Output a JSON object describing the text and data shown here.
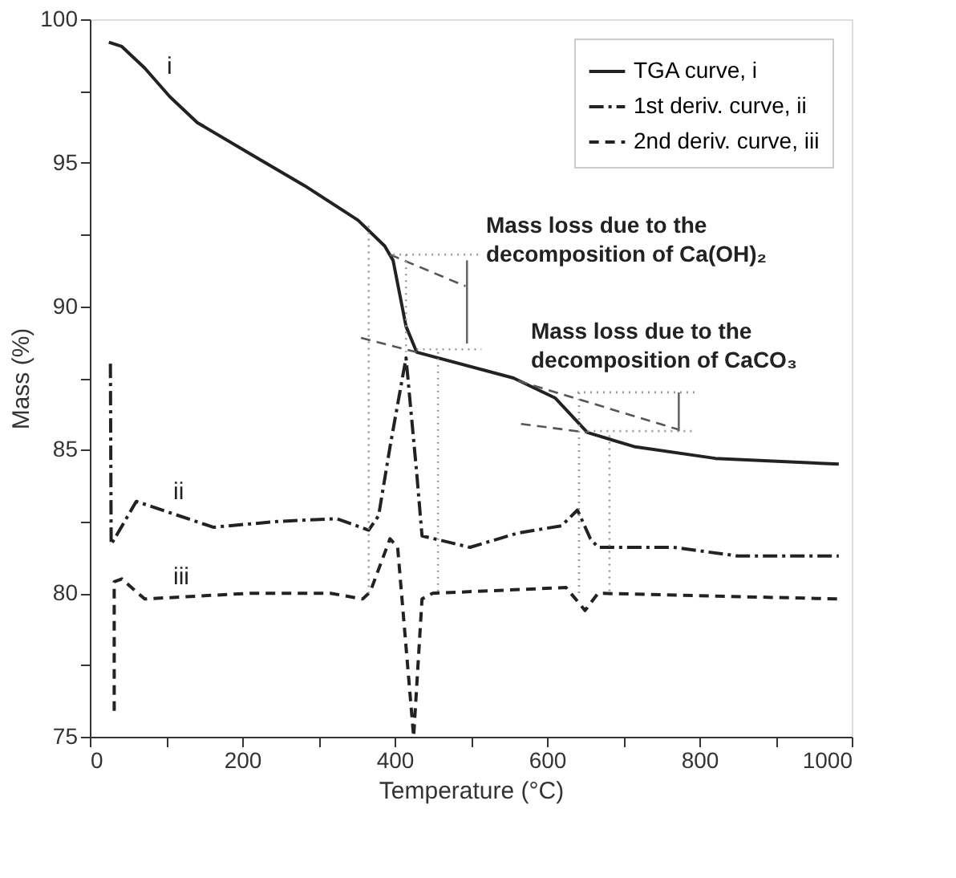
{
  "chart_data": {
    "type": "line",
    "xlabel": "Temperature (°C)",
    "ylabel": "Mass (%)",
    "xlim": [
      0,
      1000
    ],
    "ylim": [
      75,
      100
    ],
    "xticks": [
      0,
      {
        "value": 100,
        "label": null
      },
      200,
      {
        "value": 300,
        "label": null
      },
      400,
      {
        "value": 500,
        "label": null
      },
      600,
      {
        "value": 700,
        "label": null
      },
      800,
      {
        "value": 900,
        "label": null
      },
      1000
    ],
    "yticks": [
      75,
      {
        "value": 77.5,
        "label": null
      },
      80,
      {
        "value": 82.5,
        "label": null
      },
      85,
      {
        "value": 87.5,
        "label": null
      },
      90,
      {
        "value": 92.5,
        "label": null
      },
      95,
      {
        "value": 97.5,
        "label": null
      },
      100
    ],
    "grid": false,
    "legend": "top right",
    "marker": "none",
    "series": [
      {
        "name": "TGA curve, i",
        "color": "#222222",
        "line_style": "solid",
        "x": [
          25,
          42,
          72,
          105,
          141,
          211,
          282,
          352,
          387,
          398,
          415,
          429,
          556,
          611,
          653,
          716,
          821,
          983
        ],
        "values": [
          99.2,
          99.05,
          98.3,
          97.3,
          96.4,
          95.3,
          94.2,
          93.0,
          92.1,
          91.6,
          89.3,
          88.4,
          87.5,
          86.8,
          85.6,
          85.1,
          84.7,
          84.5
        ]
      },
      {
        "name": "1st deriv. curve, ii",
        "color": "#222222",
        "line_style": "dashdot",
        "x": [
          27,
          28,
          61,
          162,
          246,
          324,
          366,
          379,
          394,
          415,
          429,
          436,
          499,
          562,
          619,
          640,
          657,
          667,
          766,
          850,
          983
        ],
        "values": [
          88.0,
          81.7,
          83.2,
          82.3,
          82.5,
          82.6,
          82.2,
          82.7,
          85.1,
          88.2,
          84.2,
          82.0,
          81.6,
          82.1,
          82.35,
          82.9,
          81.9,
          81.6,
          81.6,
          81.3,
          81.3
        ]
      },
      {
        "name": "2nd deriv. curve, iii",
        "color": "#222222",
        "line_style": "dashed",
        "x": [
          32,
          32,
          42,
          72,
          211,
          316,
          358,
          368,
          394,
          404,
          425,
          436,
          450,
          625,
          650,
          667,
          983
        ],
        "values": [
          75.9,
          80.4,
          80.5,
          79.8,
          80.0,
          80.0,
          79.8,
          80.05,
          81.9,
          81.6,
          75.0,
          79.8,
          80.0,
          80.2,
          79.4,
          80.0,
          79.8
        ]
      },
      {
        "color": "#555555",
        "line_style": "dashed",
        "x": [
          394,
          493
        ],
        "values": [
          91.8,
          90.7
        ]
      },
      {
        "color": "#555555",
        "line_style": "dashed",
        "x": [
          356,
          429
        ],
        "values": [
          88.9,
          88.4
        ]
      },
      {
        "color": "#999999",
        "line_style": "dotted",
        "x": [
          398,
          514
        ],
        "values": [
          91.8,
          91.8
        ]
      },
      {
        "color": "#999999",
        "line_style": "dotted",
        "x": [
          429,
          514
        ],
        "values": [
          88.5,
          88.5
        ]
      },
      {
        "color": "#666666",
        "line_style": "solid",
        "x": [
          495,
          495
        ],
        "values": [
          91.6,
          88.7
        ]
      },
      {
        "color": "#999999",
        "line_style": "dotted",
        "x": [
          366,
          366
        ],
        "values": [
          92.8,
          80.0
        ]
      },
      {
        "color": "#999999",
        "line_style": "dotted",
        "x": [
          415,
          415
        ],
        "values": [
          91.8,
          88.4
        ]
      },
      {
        "color": "#999999",
        "line_style": "dotted",
        "x": [
          457,
          457
        ],
        "values": [
          88.4,
          80.0
        ]
      },
      {
        "color": "#555555",
        "line_style": "dashed",
        "x": [
          562,
          773
        ],
        "values": [
          87.4,
          85.7
        ]
      },
      {
        "color": "#555555",
        "line_style": "dashed",
        "x": [
          566,
          653
        ],
        "values": [
          85.9,
          85.6
        ]
      },
      {
        "color": "#999999",
        "line_style": "dotted",
        "x": [
          640,
          794
        ],
        "values": [
          87.0,
          87.0
        ]
      },
      {
        "color": "#999999",
        "line_style": "dotted",
        "x": [
          653,
          794
        ],
        "values": [
          85.65,
          85.65
        ]
      },
      {
        "color": "#666666",
        "line_style": "solid",
        "x": [
          773,
          773
        ],
        "values": [
          87.0,
          85.65
        ]
      },
      {
        "color": "#999999",
        "line_style": "dotted",
        "x": [
          642,
          642
        ],
        "values": [
          87.0,
          80.0
        ]
      },
      {
        "color": "#999999",
        "line_style": "dotted",
        "x": [
          682,
          682
        ],
        "values": [
          85.5,
          80.0
        ]
      }
    ],
    "annotations": [
      "i",
      "ii",
      "iii",
      "Mass loss due to the\ndecomposition of Ca(OH)₂",
      "Mass loss due to the\ndecomposition of CaCO₃"
    ]
  }
}
